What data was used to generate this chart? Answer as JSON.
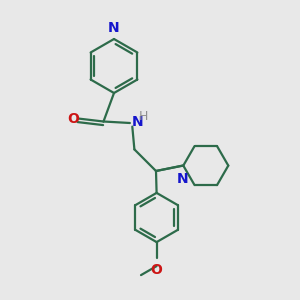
{
  "bg_color": "#e8e8e8",
  "bond_color": "#2d6b4a",
  "N_color": "#1515cc",
  "O_color": "#cc1515",
  "H_color": "#909090",
  "line_width": 1.6,
  "figsize": [
    3.0,
    3.0
  ],
  "dpi": 100,
  "xlim": [
    0,
    10
  ],
  "ylim": [
    0,
    10
  ]
}
